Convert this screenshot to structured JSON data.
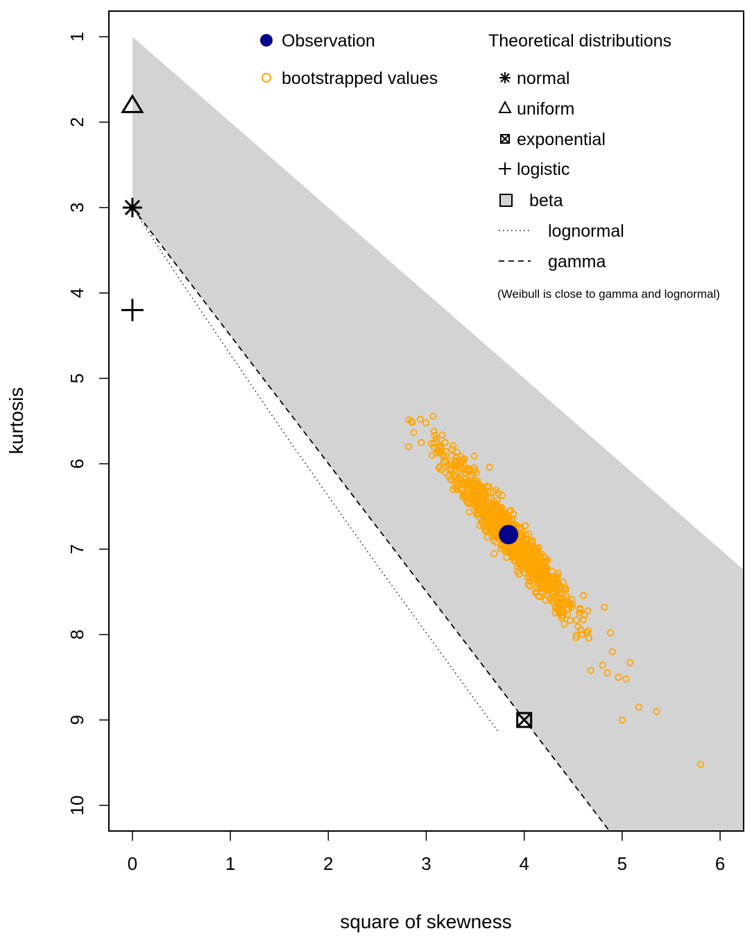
{
  "chart_data": {
    "type": "scatter",
    "title": "",
    "xlabel": "square of skewness",
    "ylabel": "kurtosis",
    "xlim": [
      -0.24,
      6.24
    ],
    "ylim": [
      10.3,
      0.7
    ],
    "y_reversed": true,
    "xticks": [
      "0",
      "1",
      "2",
      "3",
      "4",
      "5",
      "6"
    ],
    "yticks": [
      "1",
      "2",
      "3",
      "4",
      "5",
      "6",
      "7",
      "8",
      "9",
      "10"
    ],
    "grid": false,
    "legend_left": {
      "position": "top-center",
      "entries": [
        {
          "label": "Observation",
          "symbol": "filled-circle",
          "color": "#00008b"
        },
        {
          "label": "bootstrapped values",
          "symbol": "open-circle",
          "color": "#ffa500"
        }
      ]
    },
    "legend_right": {
      "position": "top-right",
      "title": "Theoretical distributions",
      "entries": [
        {
          "label": "normal",
          "symbol": "asterisk"
        },
        {
          "label": "uniform",
          "symbol": "triangle"
        },
        {
          "label": "exponential",
          "symbol": "crossed-square"
        },
        {
          "label": "logistic",
          "symbol": "plus"
        },
        {
          "label": "beta",
          "symbol": "grey-filled-square"
        },
        {
          "label": "lognormal",
          "symbol": "dotted-line"
        },
        {
          "label": "gamma",
          "symbol": "dashed-line"
        }
      ],
      "note": "(Weibull is close to gamma and lognormal)"
    },
    "beta_region": {
      "color": "#d3d3d3",
      "upper_boundary": "kurtosis = 1 + skewness^2",
      "lower_boundary": "gamma line kurtosis = 3 + 1.5 * skewness^2"
    },
    "theoretical_points": {
      "normal": {
        "x": 0,
        "y": 3
      },
      "uniform": {
        "x": 0,
        "y": 1.8
      },
      "logistic": {
        "x": 0,
        "y": 4.2
      },
      "exponential": {
        "x": 4,
        "y": 9
      }
    },
    "gamma_line": {
      "x": [
        0,
        4.87
      ],
      "y": [
        3,
        10.3
      ]
    },
    "lognormal_line": {
      "x": [
        0,
        0.5,
        1,
        1.5,
        2,
        2.5,
        3,
        3.5,
        3.73
      ],
      "y": [
        3,
        3.87,
        4.72,
        5.56,
        6.38,
        7.19,
        7.98,
        8.77,
        9.13
      ]
    },
    "observation": {
      "x": 3.84,
      "y": 6.83,
      "color": "#00008b"
    },
    "bootstrap": {
      "color": "#ffa500",
      "n": 1000,
      "center": {
        "x": 3.84,
        "y": 6.83
      },
      "x_range": [
        2.82,
        5.8
      ],
      "y_range": [
        5.43,
        9.52
      ],
      "outliers": [
        {
          "x": 5.8,
          "y": 9.52
        },
        {
          "x": 5.35,
          "y": 8.9
        },
        {
          "x": 5.17,
          "y": 8.85
        },
        {
          "x": 5.0,
          "y": 9.0
        },
        {
          "x": 5.08,
          "y": 8.33
        },
        {
          "x": 4.96,
          "y": 8.5
        },
        {
          "x": 5.04,
          "y": 8.52
        },
        {
          "x": 4.68,
          "y": 8.42
        },
        {
          "x": 4.85,
          "y": 8.45
        },
        {
          "x": 4.8,
          "y": 8.36
        },
        {
          "x": 4.9,
          "y": 8.2
        },
        {
          "x": 4.82,
          "y": 7.68
        },
        {
          "x": 4.88,
          "y": 7.98
        },
        {
          "x": 2.82,
          "y": 5.8
        }
      ]
    }
  }
}
